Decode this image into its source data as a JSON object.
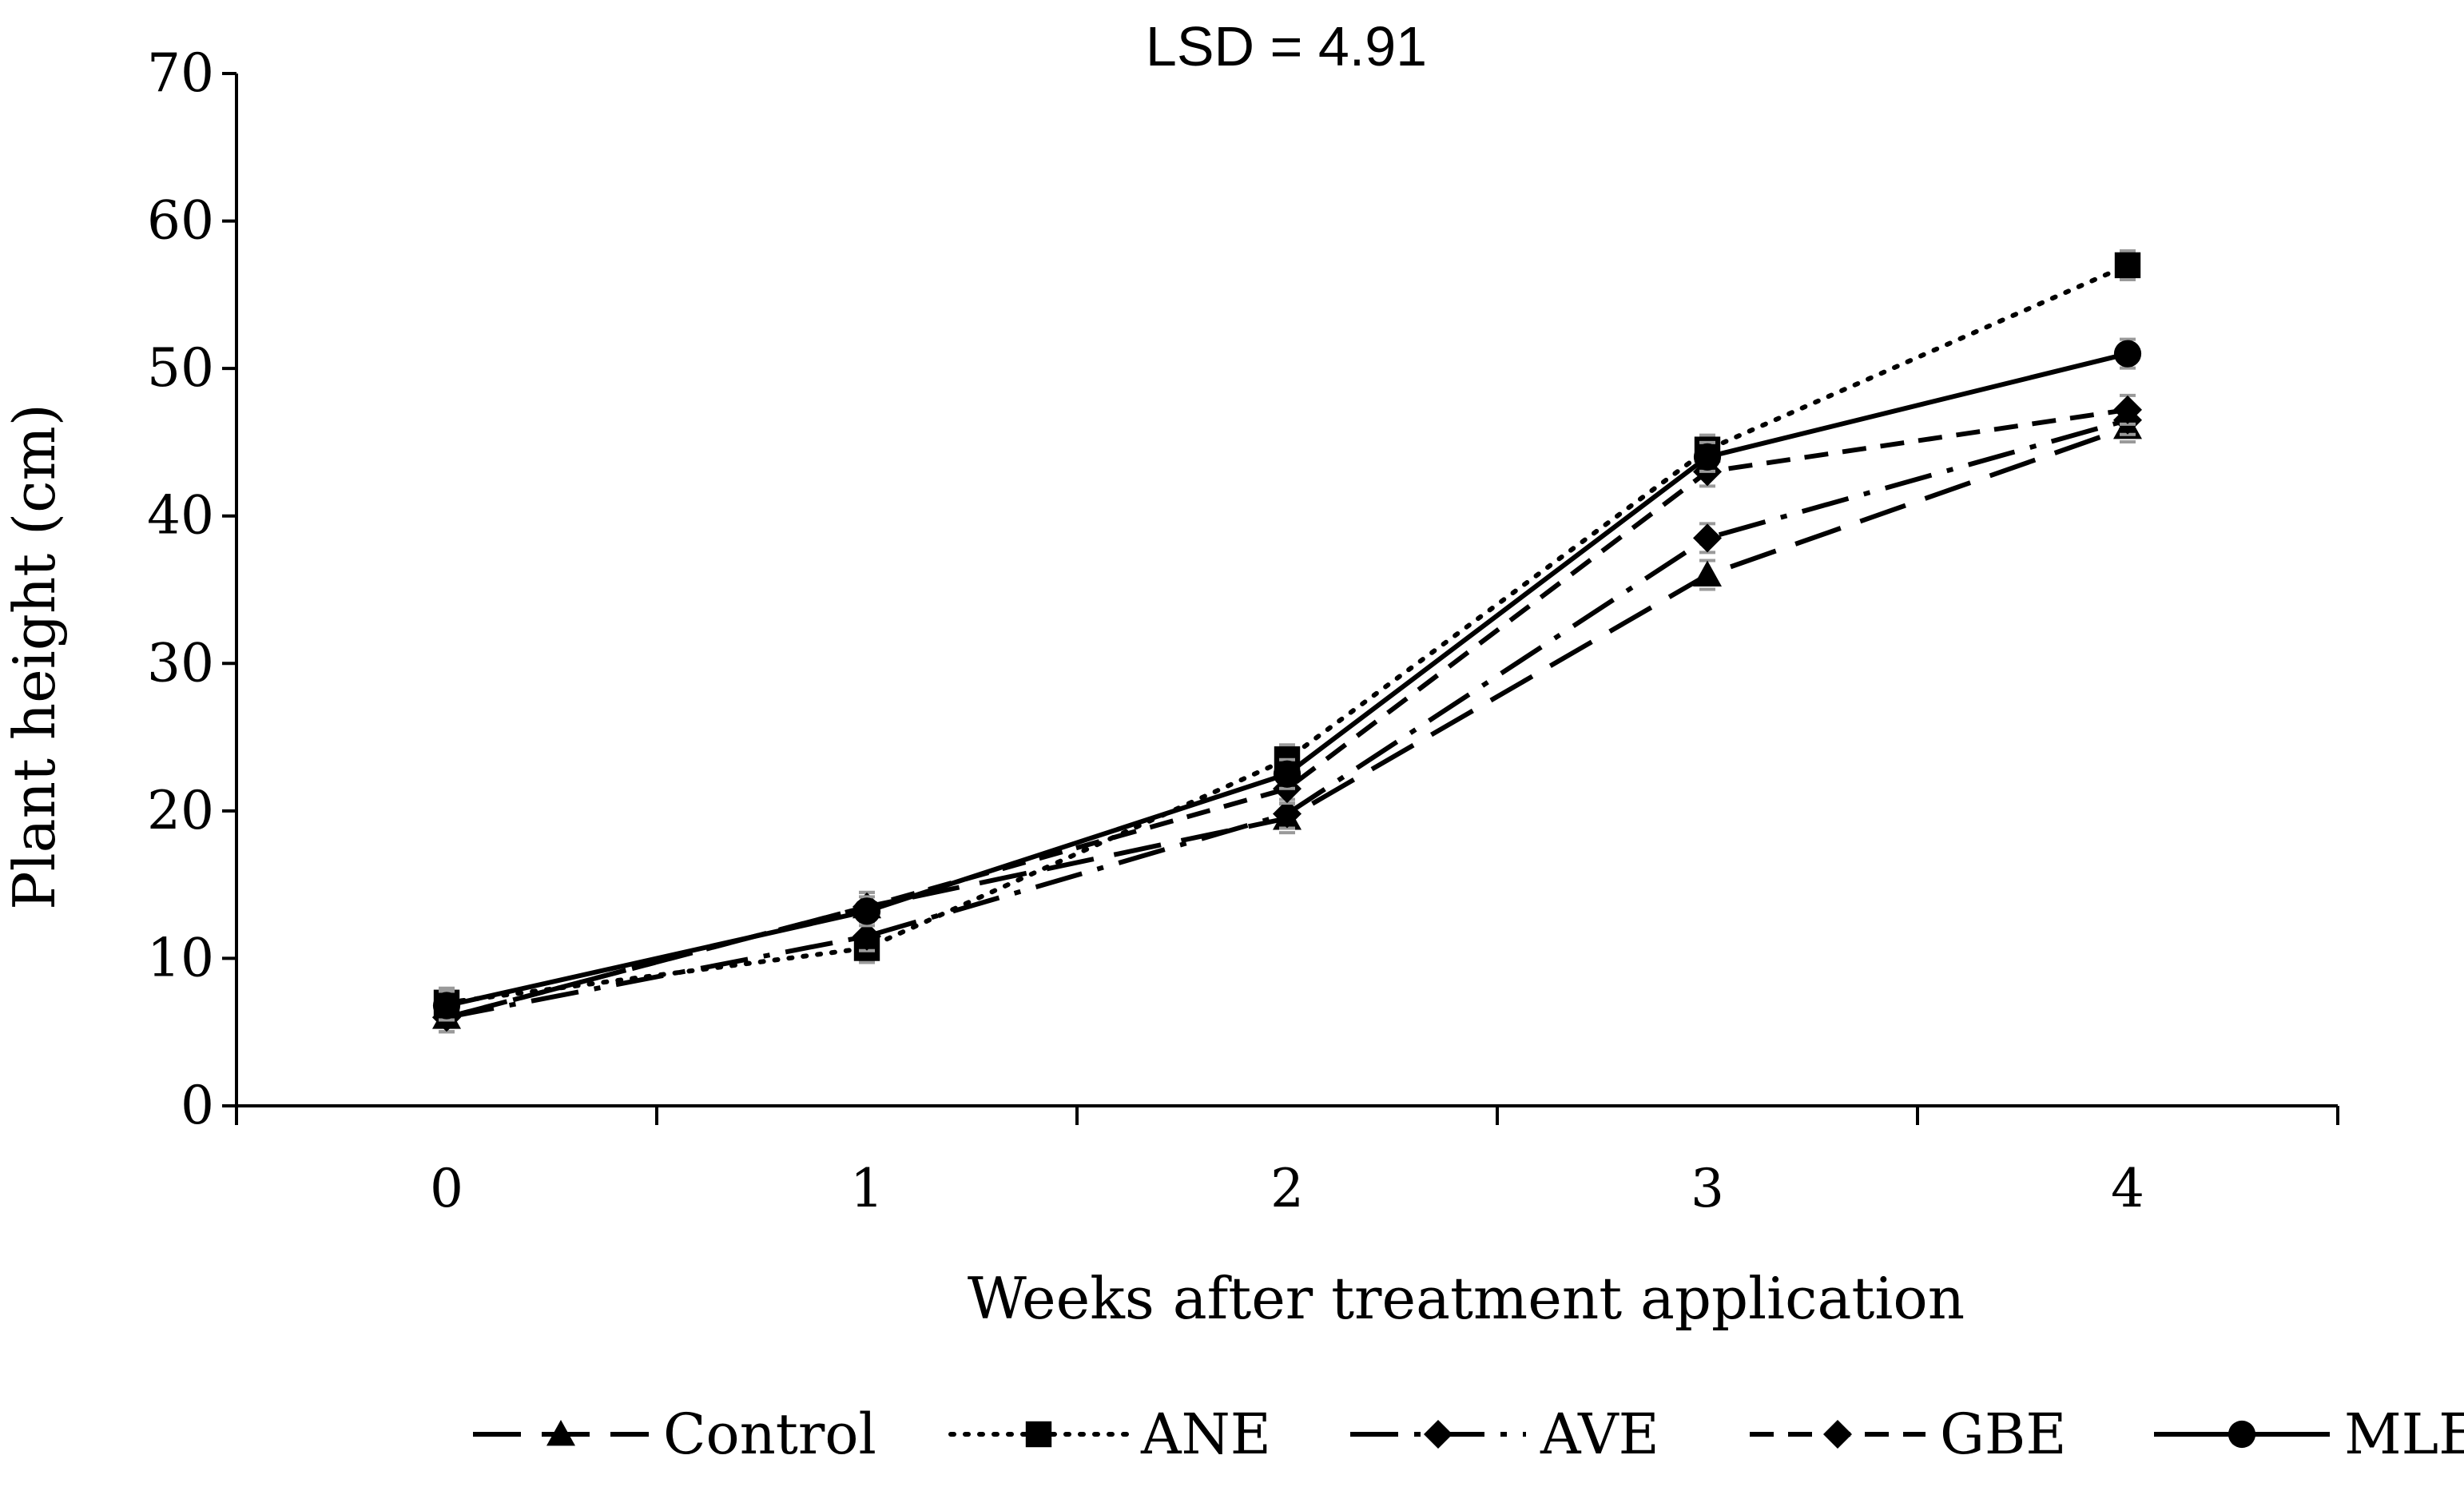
{
  "chart_data": {
    "type": "line",
    "title": "LSD = 4.91",
    "xlabel": "Weeks after treatment application",
    "ylabel": "Plant height (cm)",
    "x": [
      0,
      1,
      2,
      3,
      4
    ],
    "x_ticks": [
      "0",
      "1",
      "2",
      "3",
      "4"
    ],
    "ylim": [
      0,
      70
    ],
    "y_ticks": [
      "0",
      "10",
      "20",
      "30",
      "40",
      "50",
      "60",
      "70"
    ],
    "grid": false,
    "legend_position": "bottom",
    "series": [
      {
        "name": "Control",
        "values": [
          6.0,
          13.5,
          19.5,
          36.0,
          46.0
        ],
        "marker": "triangle",
        "line_style": "long-dash"
      },
      {
        "name": "ANE",
        "values": [
          7.0,
          10.7,
          23.5,
          44.5,
          57.0
        ],
        "marker": "square",
        "line_style": "dotted"
      },
      {
        "name": "AVE",
        "values": [
          6.0,
          11.5,
          19.8,
          38.5,
          46.5
        ],
        "marker": "diamond",
        "line_style": "dash-dot"
      },
      {
        "name": "GBE",
        "values": [
          6.0,
          13.5,
          21.5,
          43.0,
          47.2
        ],
        "marker": "diamond",
        "line_style": "short-dash"
      },
      {
        "name": "MLE",
        "values": [
          6.8,
          13.2,
          22.5,
          44.0,
          51.0
        ],
        "marker": "circle",
        "line_style": "solid"
      }
    ]
  }
}
